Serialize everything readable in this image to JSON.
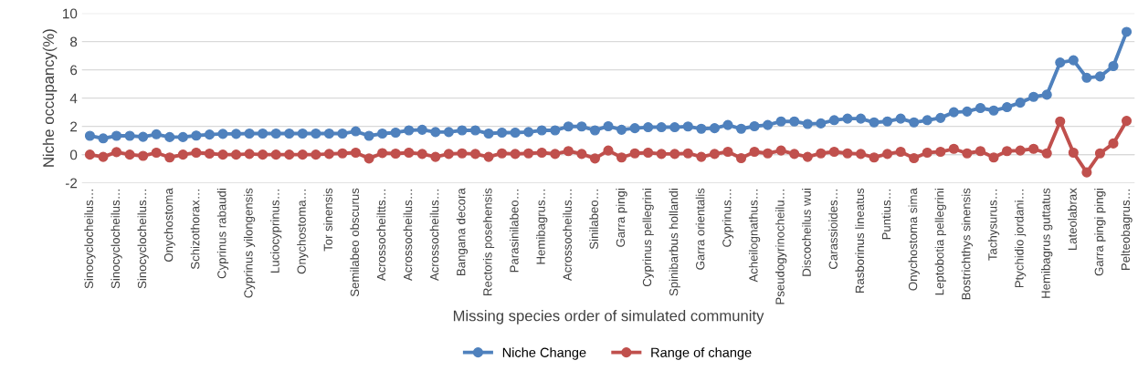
{
  "chart_data": {
    "type": "line",
    "xlabel": "Missing species order of simulated community",
    "ylabel": "Niche occupancy(%)",
    "categories": [
      "Sinocyclocheilus…",
      null,
      "Sinocyclocheilus…",
      null,
      "Sinocyclocheilus…",
      null,
      "Onychostoma",
      null,
      "Schizothorax…",
      null,
      "Cyprinus rabaudi",
      null,
      "Cyprinus yilongensis",
      null,
      "Luciocyprinus…",
      null,
      "Onychostoma…",
      null,
      "Tor sinensis",
      null,
      "Semilabeo obscurus",
      null,
      "Acrossocheiltts…",
      null,
      "Acrossocheilus…",
      null,
      "Acrossocheilus…",
      null,
      "Bangana decora",
      null,
      "Rectoris posehensis",
      null,
      "Parasinilabeo…",
      null,
      "Hemibagrus…",
      null,
      "Acrossocheilus…",
      null,
      "Sinilabeo…",
      null,
      "Garra pingi",
      null,
      "Cyprinus pellegrini",
      null,
      "Spinibarbus hollandi",
      null,
      "Garra orientalis",
      null,
      "Cyprinus…",
      null,
      "Acheilognathus…",
      null,
      "Pseudogyrinocheilu…",
      null,
      "Discocheilus wui",
      null,
      "Carassioides…",
      null,
      "Rasborinus lineatus",
      null,
      "Puntius…",
      null,
      "Onychostoma sima",
      null,
      "Leptobotia pellegrini",
      null,
      "Bostrichthys sinensis",
      null,
      "Tachysurus…",
      null,
      "Ptychidio jordani…",
      null,
      "Hemibagrus guttatus",
      null,
      "Lateolabrax",
      null,
      "Garra pingi pingi",
      null,
      "Pelteobagrus…"
    ],
    "series": [
      {
        "name": "Niche Change",
        "color": "#4f81bd",
        "values": [
          1.33,
          1.15,
          1.33,
          1.33,
          1.26,
          1.44,
          1.24,
          1.24,
          1.35,
          1.42,
          1.47,
          1.47,
          1.49,
          1.49,
          1.49,
          1.49,
          1.49,
          1.49,
          1.49,
          1.49,
          1.65,
          1.33,
          1.49,
          1.56,
          1.72,
          1.76,
          1.6,
          1.6,
          1.72,
          1.72,
          1.49,
          1.56,
          1.56,
          1.6,
          1.72,
          1.72,
          1.99,
          1.99,
          1.72,
          2.01,
          1.76,
          1.87,
          1.94,
          1.94,
          1.94,
          1.99,
          1.83,
          1.87,
          2.1,
          1.83,
          2.01,
          2.1,
          2.35,
          2.35,
          2.17,
          2.21,
          2.44,
          2.55,
          2.55,
          2.28,
          2.35,
          2.55,
          2.28,
          2.44,
          2.6,
          3.0,
          3.05,
          3.3,
          3.12,
          3.36,
          3.68,
          4.09,
          4.24,
          6.52,
          6.68,
          5.44,
          5.53,
          6.27,
          8.69
        ]
      },
      {
        "name": "Range of change",
        "color": "#c0504d",
        "values": [
          0,
          -0.16,
          0.18,
          0,
          -0.09,
          0.14,
          -0.2,
          0,
          0.14,
          0.07,
          0,
          0,
          0.05,
          0,
          0,
          0,
          0,
          0,
          0.05,
          0.09,
          0.14,
          -0.27,
          0.11,
          0.07,
          0.14,
          0.05,
          -0.16,
          0.05,
          0.09,
          0.05,
          -0.16,
          0.09,
          0.05,
          0.09,
          0.14,
          0.05,
          0.25,
          0.05,
          -0.27,
          0.29,
          -0.2,
          0.09,
          0.14,
          0.05,
          0.05,
          0.09,
          -0.16,
          0.05,
          0.2,
          -0.25,
          0.2,
          0.09,
          0.29,
          0.05,
          -0.16,
          0.09,
          0.2,
          0.09,
          0.05,
          -0.2,
          0.05,
          0.2,
          -0.25,
          0.14,
          0.2,
          0.41,
          0.09,
          0.25,
          -0.2,
          0.25,
          0.29,
          0.41,
          0.09,
          2.35,
          0.14,
          -1.26,
          0.09,
          0.79,
          2.39
        ]
      }
    ],
    "ylim": [
      -2,
      10
    ],
    "yticks": [
      -2,
      0,
      2,
      4,
      6,
      8,
      10
    ],
    "grid": "y",
    "legend": "bottom",
    "marker": "circle",
    "line_style": "solid"
  }
}
